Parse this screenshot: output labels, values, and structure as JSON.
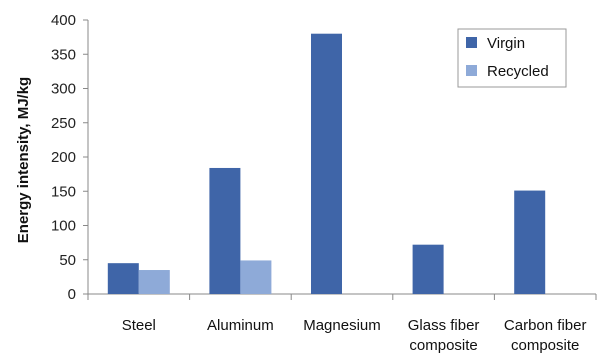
{
  "chart_data": {
    "type": "bar",
    "title": "",
    "xlabel": "",
    "ylabel": "Energy intensity, MJ/kg",
    "categories": [
      [
        "Steel"
      ],
      [
        "Aluminum"
      ],
      [
        "Magnesium"
      ],
      [
        "Glass fiber",
        "composite"
      ],
      [
        "Carbon fiber",
        "composite"
      ]
    ],
    "series": [
      {
        "name": "Virgin",
        "color": "#3f65a8",
        "values": [
          45,
          184,
          380,
          72,
          151
        ]
      },
      {
        "name": "Recycled",
        "color": "#8eaad8",
        "values": [
          35,
          49,
          0,
          0,
          0
        ]
      }
    ],
    "ylim": [
      0,
      400
    ],
    "yticks": [
      0,
      50,
      100,
      150,
      200,
      250,
      300,
      350,
      400
    ],
    "grid": false,
    "legend_position": "top-right"
  }
}
